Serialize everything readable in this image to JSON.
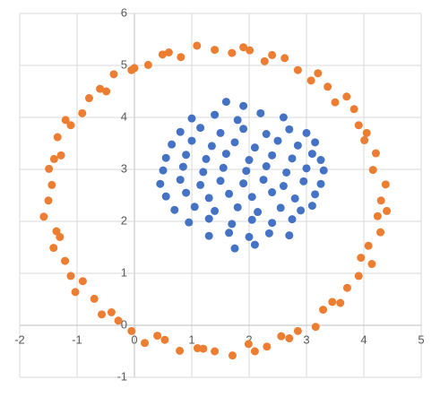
{
  "chart_data": {
    "type": "scatter",
    "xlim": [
      -2,
      5
    ],
    "ylim": [
      -1,
      6
    ],
    "xticks": [
      -2,
      -1,
      0,
      1,
      2,
      3,
      4,
      5
    ],
    "yticks": [
      -1,
      0,
      1,
      2,
      3,
      4,
      5,
      6
    ],
    "grid": true,
    "series": [
      {
        "color": "#ed7d31",
        "x": [
          4.3,
          4.38,
          4.16,
          4.21,
          4.01,
          3.91,
          3.83,
          3.5,
          3.37,
          3.08,
          2.85,
          2.62,
          2.27,
          2.01,
          1.7,
          1.4,
          1.09,
          0.81,
          0.49,
          0.24,
          -0.05,
          -0.36,
          -0.49,
          -0.79,
          -0.91,
          -1.11,
          -1.34,
          -1.28,
          -1.49,
          -1.44,
          -1.5,
          -1.58,
          -1.36,
          -1.41,
          -1.21,
          -1.11,
          -1.03,
          -0.7,
          -0.57,
          -0.28,
          -0.05,
          0.18,
          0.53,
          0.79,
          1.1,
          1.4,
          1.71,
          1.99,
          2.31,
          2.56,
          2.85,
          3.16,
          3.29,
          3.59,
          3.71,
          3.91,
          4.14,
          4.08,
          4.29,
          4.24,
          4.4,
          4.05,
          3.7,
          3.2,
          2.4,
          1.9,
          0.6,
          0.0,
          -0.6,
          -1.2,
          -1.4,
          -1.3,
          -0.9,
          -0.4,
          0.4,
          1.2,
          2.1,
          2.7,
          3.45,
          3.95
        ],
        "y": [
          2.4,
          2.71,
          2.99,
          3.31,
          3.56,
          3.85,
          4.16,
          4.29,
          4.59,
          4.71,
          4.91,
          5.14,
          5.08,
          5.29,
          5.24,
          5.3,
          5.38,
          5.16,
          5.21,
          5.01,
          4.91,
          4.83,
          4.5,
          4.37,
          4.08,
          3.85,
          3.62,
          3.27,
          3.01,
          2.7,
          2.4,
          2.09,
          1.81,
          1.49,
          1.24,
          0.95,
          0.64,
          0.51,
          0.21,
          0.09,
          -0.11,
          -0.34,
          -0.28,
          -0.49,
          -0.44,
          -0.5,
          -0.58,
          -0.36,
          -0.41,
          -0.21,
          -0.11,
          -0.03,
          0.3,
          0.43,
          0.72,
          0.95,
          1.18,
          1.53,
          1.79,
          2.1,
          2.2,
          3.7,
          4.4,
          4.85,
          5.2,
          5.35,
          5.25,
          4.95,
          4.55,
          3.95,
          3.2,
          1.7,
          0.85,
          0.25,
          -0.2,
          -0.45,
          -0.5,
          -0.25,
          0.45,
          1.3
        ]
      },
      {
        "color": "#4472c4",
        "x": [
          1.6,
          1.9,
          1.0,
          1.4,
          1.8,
          2.2,
          2.6,
          0.8,
          1.15,
          1.5,
          1.9,
          2.3,
          2.7,
          3.0,
          0.65,
          1.0,
          1.35,
          1.75,
          2.1,
          2.5,
          2.85,
          3.15,
          0.55,
          0.9,
          1.25,
          1.6,
          2.0,
          2.4,
          2.75,
          3.1,
          3.25,
          0.5,
          0.85,
          1.2,
          1.55,
          1.95,
          2.3,
          2.65,
          3.0,
          3.3,
          0.45,
          0.8,
          1.15,
          1.5,
          1.9,
          2.25,
          2.6,
          2.95,
          3.25,
          0.55,
          0.9,
          1.3,
          1.65,
          2.05,
          2.4,
          2.8,
          3.15,
          0.7,
          1.05,
          1.4,
          1.8,
          2.15,
          2.55,
          2.9,
          3.1,
          0.95,
          1.3,
          1.7,
          2.05,
          2.4,
          2.75,
          1.3,
          1.65,
          2.0,
          2.35,
          2.7,
          1.75,
          2.1
        ],
        "y": [
          4.3,
          4.22,
          3.98,
          4.05,
          3.95,
          4.08,
          4.0,
          3.72,
          3.8,
          3.7,
          3.78,
          3.68,
          3.77,
          3.7,
          3.48,
          3.55,
          3.45,
          3.52,
          3.42,
          3.55,
          3.46,
          3.52,
          3.22,
          3.28,
          3.2,
          3.3,
          3.18,
          3.27,
          3.21,
          3.3,
          3.18,
          2.98,
          3.05,
          2.95,
          3.03,
          2.97,
          3.06,
          2.94,
          3.02,
          2.98,
          2.72,
          2.8,
          2.7,
          2.78,
          2.73,
          2.8,
          2.68,
          2.77,
          2.72,
          2.48,
          2.55,
          2.45,
          2.53,
          2.47,
          2.56,
          2.44,
          2.52,
          2.22,
          2.28,
          2.2,
          2.27,
          2.18,
          2.26,
          2.21,
          2.3,
          1.98,
          2.05,
          1.95,
          2.03,
          1.97,
          2.04,
          1.72,
          1.78,
          1.7,
          1.77,
          1.73,
          1.48,
          1.55
        ]
      }
    ]
  }
}
